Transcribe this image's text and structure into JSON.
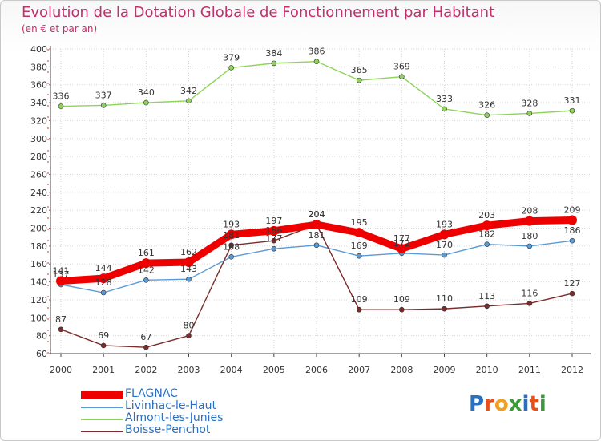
{
  "header": {
    "title": "Evolution de la Dotation Globale de Fonctionnement par Habitant",
    "subtitle": "(en € et par an)"
  },
  "logo": {
    "text": "Proxiti",
    "letters": [
      "P",
      "r",
      "o",
      "x",
      "i",
      "t",
      "i"
    ],
    "colors": [
      "#2a6fc0",
      "#e8501a",
      "#f0a020",
      "#3a9a3a",
      "#2a6fc0",
      "#e8501a",
      "#3a9a3a"
    ]
  },
  "chart_data": {
    "type": "line",
    "title": "Evolution de la Dotation Globale de Fonctionnement par Habitant",
    "subtitle": "(en € et par an)",
    "xlabel": "",
    "ylabel": "",
    "ylim": [
      60,
      400
    ],
    "ytick_step": 20,
    "yticks": [
      "60",
      "80",
      "100",
      "120",
      "140",
      "160",
      "180",
      "200",
      "220",
      "240",
      "260",
      "280",
      "300",
      "320",
      "340",
      "360",
      "380",
      "400"
    ],
    "grid": true,
    "legend_position": "bottom-left",
    "categories": [
      "2000",
      "2001",
      "2002",
      "2003",
      "2004",
      "2005",
      "2006",
      "2007",
      "2008",
      "2009",
      "2010",
      "2011",
      "2012"
    ],
    "series": [
      {
        "name": "Almont-les-Junies",
        "color": "#8ed45a",
        "emphasis": false,
        "values": [
          336,
          337,
          340,
          342,
          379,
          384,
          386,
          365,
          369,
          333,
          326,
          328,
          331
        ]
      },
      {
        "name": "Livinhac-le-Haut",
        "color": "#5b9bd5",
        "emphasis": false,
        "values": [
          137,
          128,
          142,
          143,
          168,
          177,
          181,
          169,
          172,
          170,
          182,
          180,
          186
        ]
      },
      {
        "name": "Boisse-Penchot",
        "color": "#7b2c2c",
        "emphasis": false,
        "values": [
          87,
          69,
          67,
          80,
          181,
          186,
          204,
          109,
          109,
          110,
          113,
          116,
          127
        ]
      },
      {
        "name": "FLAGNAC",
        "color": "#ee0000",
        "emphasis": true,
        "values": [
          141,
          144,
          161,
          162,
          193,
          197,
          204,
          195,
          177,
          193,
          203,
          208,
          209
        ]
      }
    ],
    "legend": [
      "FLAGNAC",
      "Livinhac-le-Haut",
      "Almont-les-Junies",
      "Boisse-Penchot"
    ]
  }
}
